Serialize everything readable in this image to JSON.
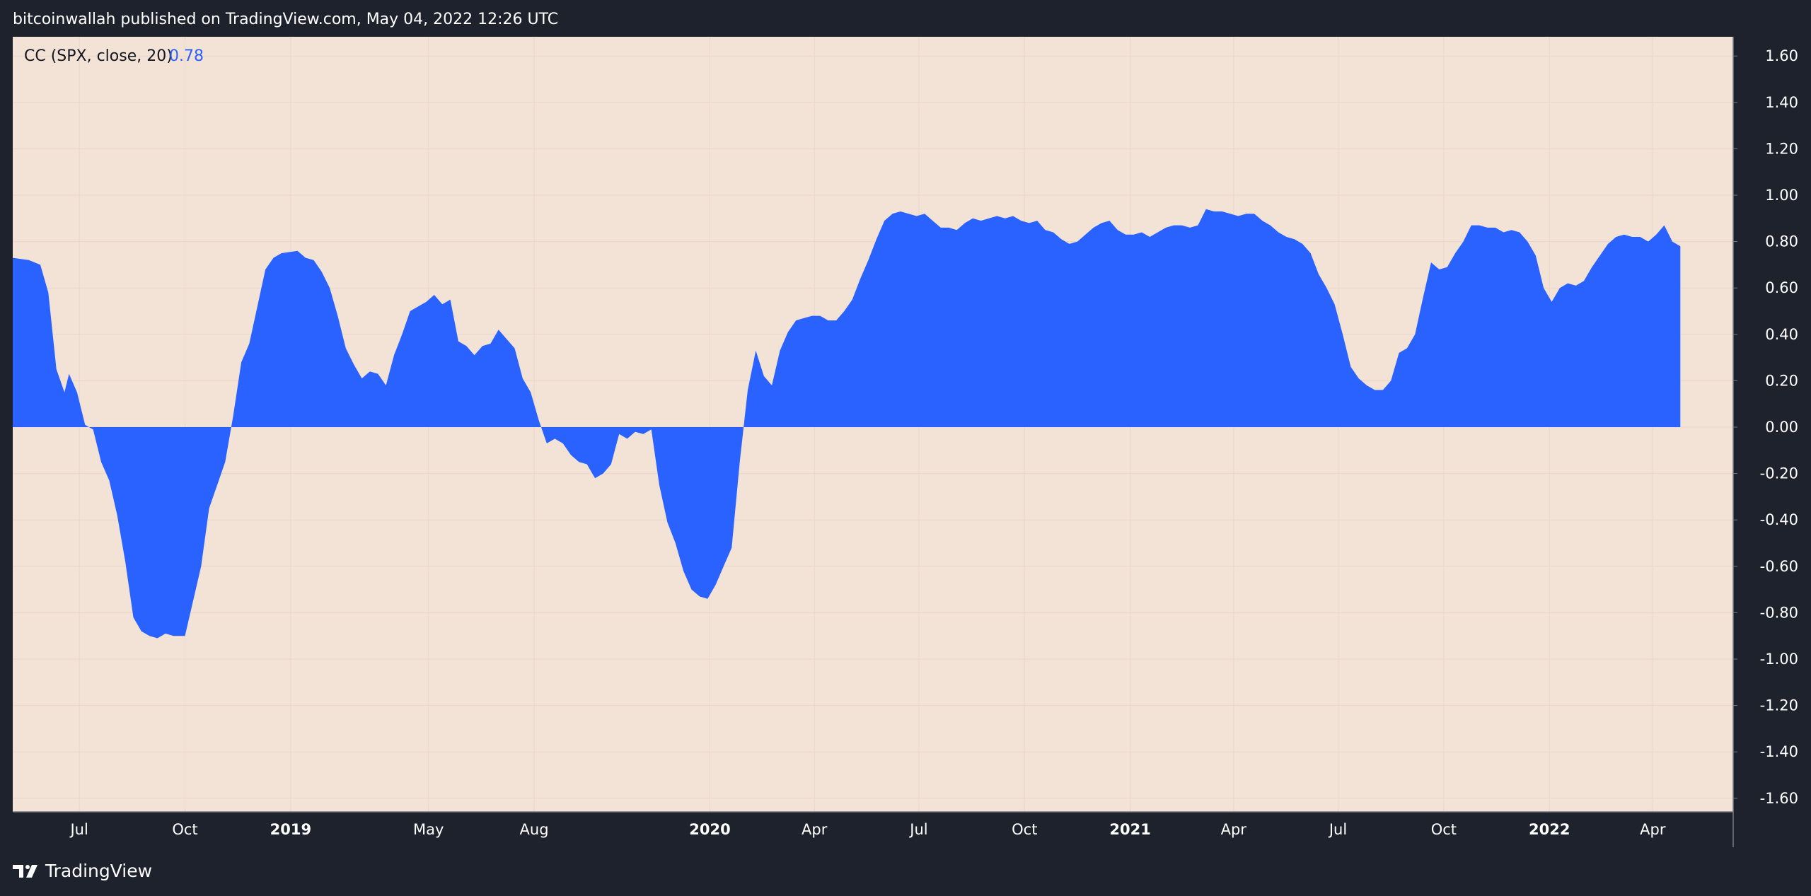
{
  "header": {
    "published_text": "bitcoinwallah published on TradingView.com, May 04, 2022 12:26 UTC"
  },
  "footer": {
    "brand": "TradingView",
    "logo_icon": "tradingview-logo-icon"
  },
  "legend": {
    "label": "CC (SPX, close, 20)",
    "value": "0.78"
  },
  "colors": {
    "frame": "#1e222d",
    "plot_background": "#f3e2d6",
    "area_fill": "#2962ff",
    "legend_value": "#2962ff",
    "grid": "#ead6c9",
    "axis_text": "#ffffff"
  },
  "chart_data": {
    "type": "area",
    "title": "",
    "xlabel": "",
    "ylabel": "",
    "ylim": [
      -1.6,
      1.6
    ],
    "baseline": 0,
    "grid": true,
    "y_ticks": [
      "1.60",
      "1.40",
      "1.20",
      "1.00",
      "0.80",
      "0.60",
      "0.40",
      "0.20",
      "0.00",
      "-0.20",
      "-0.40",
      "-0.60",
      "-0.80",
      "-1.00",
      "-1.20",
      "-1.40",
      "-1.60"
    ],
    "x_range": [
      "2018-05-04",
      "2022-06-10"
    ],
    "x_ticks": [
      {
        "date": "2018-07-01",
        "label": "Jul",
        "major": false
      },
      {
        "date": "2018-10-01",
        "label": "Oct",
        "major": false
      },
      {
        "date": "2019-01-01",
        "label": "2019",
        "major": true
      },
      {
        "date": "2019-05-01",
        "label": "May",
        "major": false
      },
      {
        "date": "2019-08-01",
        "label": "Aug",
        "major": false
      },
      {
        "date": "2020-01-01",
        "label": "2020",
        "major": true
      },
      {
        "date": "2020-04-01",
        "label": "Apr",
        "major": false
      },
      {
        "date": "2020-07-01",
        "label": "Jul",
        "major": false
      },
      {
        "date": "2020-10-01",
        "label": "Oct",
        "major": false
      },
      {
        "date": "2021-01-01",
        "label": "2021",
        "major": true
      },
      {
        "date": "2021-04-01",
        "label": "Apr",
        "major": false
      },
      {
        "date": "2021-07-01",
        "label": "Jul",
        "major": false
      },
      {
        "date": "2021-10-01",
        "label": "Oct",
        "major": false
      },
      {
        "date": "2022-01-01",
        "label": "2022",
        "major": true
      },
      {
        "date": "2022-04-01",
        "label": "Apr",
        "major": false
      }
    ],
    "series": [
      {
        "name": "CC (SPX, close, 20)",
        "points": [
          [
            "2018-05-04",
            0.73
          ],
          [
            "2018-05-18",
            0.72
          ],
          [
            "2018-05-28",
            0.7
          ],
          [
            "2018-06-04",
            0.58
          ],
          [
            "2018-06-11",
            0.25
          ],
          [
            "2018-06-18",
            0.15
          ],
          [
            "2018-06-22",
            0.23
          ],
          [
            "2018-06-29",
            0.15
          ],
          [
            "2018-07-06",
            0.01
          ],
          [
            "2018-07-13",
            -0.01
          ],
          [
            "2018-07-20",
            -0.15
          ],
          [
            "2018-07-27",
            -0.23
          ],
          [
            "2018-08-03",
            -0.38
          ],
          [
            "2018-08-10",
            -0.58
          ],
          [
            "2018-08-17",
            -0.82
          ],
          [
            "2018-08-24",
            -0.88
          ],
          [
            "2018-08-31",
            -0.9
          ],
          [
            "2018-09-07",
            -0.91
          ],
          [
            "2018-09-14",
            -0.89
          ],
          [
            "2018-09-21",
            -0.9
          ],
          [
            "2018-10-01",
            -0.9
          ],
          [
            "2018-10-15",
            -0.6
          ],
          [
            "2018-10-22",
            -0.35
          ],
          [
            "2018-10-29",
            -0.25
          ],
          [
            "2018-11-05",
            -0.15
          ],
          [
            "2018-11-12",
            0.05
          ],
          [
            "2018-11-19",
            0.28
          ],
          [
            "2018-11-26",
            0.36
          ],
          [
            "2018-12-03",
            0.52
          ],
          [
            "2018-12-10",
            0.68
          ],
          [
            "2018-12-17",
            0.73
          ],
          [
            "2018-12-24",
            0.75
          ],
          [
            "2019-01-07",
            0.76
          ],
          [
            "2019-01-14",
            0.73
          ],
          [
            "2019-01-21",
            0.72
          ],
          [
            "2019-01-28",
            0.67
          ],
          [
            "2019-02-04",
            0.6
          ],
          [
            "2019-02-11",
            0.48
          ],
          [
            "2019-02-18",
            0.34
          ],
          [
            "2019-02-25",
            0.27
          ],
          [
            "2019-03-04",
            0.21
          ],
          [
            "2019-03-11",
            0.24
          ],
          [
            "2019-03-18",
            0.23
          ],
          [
            "2019-03-25",
            0.18
          ],
          [
            "2019-04-01",
            0.31
          ],
          [
            "2019-04-08",
            0.4
          ],
          [
            "2019-04-15",
            0.5
          ],
          [
            "2019-04-22",
            0.52
          ],
          [
            "2019-04-29",
            0.54
          ],
          [
            "2019-05-06",
            0.57
          ],
          [
            "2019-05-13",
            0.53
          ],
          [
            "2019-05-20",
            0.55
          ],
          [
            "2019-05-27",
            0.37
          ],
          [
            "2019-06-03",
            0.35
          ],
          [
            "2019-06-10",
            0.31
          ],
          [
            "2019-06-17",
            0.35
          ],
          [
            "2019-06-24",
            0.36
          ],
          [
            "2019-07-01",
            0.42
          ],
          [
            "2019-07-08",
            0.38
          ],
          [
            "2019-07-15",
            0.34
          ],
          [
            "2019-07-22",
            0.21
          ],
          [
            "2019-07-29",
            0.15
          ],
          [
            "2019-08-05",
            0.03
          ],
          [
            "2019-08-12",
            -0.07
          ],
          [
            "2019-08-19",
            -0.05
          ],
          [
            "2019-08-26",
            -0.07
          ],
          [
            "2019-09-02",
            -0.12
          ],
          [
            "2019-09-09",
            -0.15
          ],
          [
            "2019-09-16",
            -0.16
          ],
          [
            "2019-09-23",
            -0.22
          ],
          [
            "2019-09-30",
            -0.2
          ],
          [
            "2019-10-07",
            -0.16
          ],
          [
            "2019-10-14",
            -0.03
          ],
          [
            "2019-10-21",
            -0.05
          ],
          [
            "2019-10-28",
            -0.02
          ],
          [
            "2019-11-04",
            -0.03
          ],
          [
            "2019-11-11",
            -0.01
          ],
          [
            "2019-11-18",
            -0.25
          ],
          [
            "2019-11-25",
            -0.41
          ],
          [
            "2019-12-02",
            -0.5
          ],
          [
            "2019-12-09",
            -0.62
          ],
          [
            "2019-12-16",
            -0.7
          ],
          [
            "2019-12-23",
            -0.73
          ],
          [
            "2019-12-30",
            -0.74
          ],
          [
            "2020-01-06",
            -0.68
          ],
          [
            "2020-01-13",
            -0.6
          ],
          [
            "2020-01-20",
            -0.52
          ],
          [
            "2020-01-27",
            -0.15
          ],
          [
            "2020-02-03",
            0.16
          ],
          [
            "2020-02-10",
            0.33
          ],
          [
            "2020-02-17",
            0.22
          ],
          [
            "2020-02-24",
            0.18
          ],
          [
            "2020-03-02",
            0.33
          ],
          [
            "2020-03-09",
            0.41
          ],
          [
            "2020-03-16",
            0.46
          ],
          [
            "2020-03-23",
            0.47
          ],
          [
            "2020-03-30",
            0.48
          ],
          [
            "2020-04-06",
            0.48
          ],
          [
            "2020-04-13",
            0.46
          ],
          [
            "2020-04-20",
            0.46
          ],
          [
            "2020-04-27",
            0.5
          ],
          [
            "2020-05-04",
            0.55
          ],
          [
            "2020-05-11",
            0.64
          ],
          [
            "2020-05-18",
            0.72
          ],
          [
            "2020-05-25",
            0.81
          ],
          [
            "2020-06-01",
            0.89
          ],
          [
            "2020-06-08",
            0.92
          ],
          [
            "2020-06-15",
            0.93
          ],
          [
            "2020-06-22",
            0.92
          ],
          [
            "2020-06-29",
            0.91
          ],
          [
            "2020-07-06",
            0.92
          ],
          [
            "2020-07-13",
            0.89
          ],
          [
            "2020-07-20",
            0.86
          ],
          [
            "2020-07-27",
            0.86
          ],
          [
            "2020-08-03",
            0.85
          ],
          [
            "2020-08-10",
            0.88
          ],
          [
            "2020-08-17",
            0.9
          ],
          [
            "2020-08-24",
            0.89
          ],
          [
            "2020-08-31",
            0.9
          ],
          [
            "2020-09-07",
            0.91
          ],
          [
            "2020-09-14",
            0.9
          ],
          [
            "2020-09-21",
            0.91
          ],
          [
            "2020-09-28",
            0.89
          ],
          [
            "2020-10-05",
            0.88
          ],
          [
            "2020-10-12",
            0.89
          ],
          [
            "2020-10-19",
            0.85
          ],
          [
            "2020-10-26",
            0.84
          ],
          [
            "2020-11-02",
            0.81
          ],
          [
            "2020-11-09",
            0.79
          ],
          [
            "2020-11-16",
            0.8
          ],
          [
            "2020-11-23",
            0.83
          ],
          [
            "2020-11-30",
            0.86
          ],
          [
            "2020-12-07",
            0.88
          ],
          [
            "2020-12-14",
            0.89
          ],
          [
            "2020-12-21",
            0.85
          ],
          [
            "2020-12-28",
            0.83
          ],
          [
            "2021-01-04",
            0.83
          ],
          [
            "2021-01-11",
            0.84
          ],
          [
            "2021-01-18",
            0.82
          ],
          [
            "2021-01-25",
            0.84
          ],
          [
            "2021-02-01",
            0.86
          ],
          [
            "2021-02-08",
            0.87
          ],
          [
            "2021-02-15",
            0.87
          ],
          [
            "2021-02-22",
            0.86
          ],
          [
            "2021-03-01",
            0.87
          ],
          [
            "2021-03-08",
            0.94
          ],
          [
            "2021-03-15",
            0.93
          ],
          [
            "2021-03-22",
            0.93
          ],
          [
            "2021-03-29",
            0.92
          ],
          [
            "2021-04-05",
            0.91
          ],
          [
            "2021-04-12",
            0.92
          ],
          [
            "2021-04-19",
            0.92
          ],
          [
            "2021-04-26",
            0.89
          ],
          [
            "2021-05-03",
            0.87
          ],
          [
            "2021-05-10",
            0.84
          ],
          [
            "2021-05-17",
            0.82
          ],
          [
            "2021-05-24",
            0.81
          ],
          [
            "2021-05-31",
            0.79
          ],
          [
            "2021-06-07",
            0.75
          ],
          [
            "2021-06-14",
            0.66
          ],
          [
            "2021-06-21",
            0.6
          ],
          [
            "2021-06-28",
            0.53
          ],
          [
            "2021-07-05",
            0.4
          ],
          [
            "2021-07-12",
            0.26
          ],
          [
            "2021-07-19",
            0.21
          ],
          [
            "2021-07-26",
            0.18
          ],
          [
            "2021-08-02",
            0.16
          ],
          [
            "2021-08-09",
            0.16
          ],
          [
            "2021-08-16",
            0.2
          ],
          [
            "2021-08-23",
            0.32
          ],
          [
            "2021-08-30",
            0.34
          ],
          [
            "2021-09-06",
            0.4
          ],
          [
            "2021-09-13",
            0.56
          ],
          [
            "2021-09-20",
            0.71
          ],
          [
            "2021-09-27",
            0.68
          ],
          [
            "2021-10-04",
            0.69
          ],
          [
            "2021-10-11",
            0.75
          ],
          [
            "2021-10-18",
            0.8
          ],
          [
            "2021-10-25",
            0.87
          ],
          [
            "2021-11-01",
            0.87
          ],
          [
            "2021-11-08",
            0.86
          ],
          [
            "2021-11-15",
            0.86
          ],
          [
            "2021-11-22",
            0.84
          ],
          [
            "2021-11-29",
            0.85
          ],
          [
            "2021-12-06",
            0.84
          ],
          [
            "2021-12-13",
            0.8
          ],
          [
            "2021-12-20",
            0.74
          ],
          [
            "2021-12-27",
            0.6
          ],
          [
            "2022-01-03",
            0.54
          ],
          [
            "2022-01-10",
            0.6
          ],
          [
            "2022-01-17",
            0.62
          ],
          [
            "2022-01-24",
            0.61
          ],
          [
            "2022-01-31",
            0.63
          ],
          [
            "2022-02-07",
            0.69
          ],
          [
            "2022-02-14",
            0.74
          ],
          [
            "2022-02-21",
            0.79
          ],
          [
            "2022-02-28",
            0.82
          ],
          [
            "2022-03-07",
            0.83
          ],
          [
            "2022-03-14",
            0.82
          ],
          [
            "2022-03-21",
            0.82
          ],
          [
            "2022-03-28",
            0.8
          ],
          [
            "2022-04-04",
            0.83
          ],
          [
            "2022-04-11",
            0.87
          ],
          [
            "2022-04-18",
            0.8
          ],
          [
            "2022-04-25",
            0.78
          ]
        ]
      }
    ]
  }
}
